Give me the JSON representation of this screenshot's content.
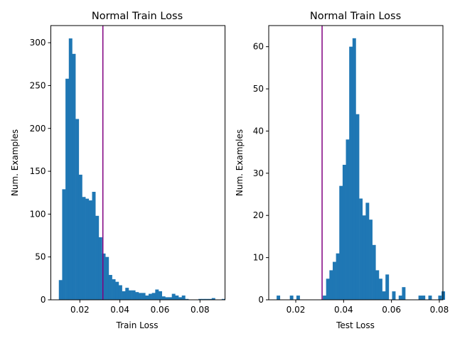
{
  "chart_data": [
    {
      "type": "histogram",
      "title": "Normal Train Loss",
      "xlabel": "Train Loss",
      "ylabel": "Num. Examples",
      "xlim": [
        0.0055,
        0.0925
      ],
      "ylim": [
        0,
        320
      ],
      "xticks": [
        0.02,
        0.04,
        0.06,
        0.08
      ],
      "xtick_labels": [
        "0.02",
        "0.04",
        "0.06",
        "0.08"
      ],
      "yticks": [
        0,
        50,
        100,
        150,
        200,
        250,
        300
      ],
      "ytick_labels": [
        "0",
        "50",
        "100",
        "150",
        "200",
        "250",
        "300"
      ],
      "bar_color": "#1f77b4",
      "vline": {
        "x": 0.0315,
        "color": "#800080"
      },
      "bin_start": 0.0095,
      "bin_width": 0.00166,
      "counts": [
        23,
        129,
        258,
        305,
        287,
        211,
        146,
        120,
        118,
        116,
        126,
        98,
        73,
        54,
        50,
        29,
        24,
        21,
        17,
        10,
        14,
        11,
        11,
        9,
        8,
        8,
        5,
        7,
        8,
        12,
        10,
        4,
        3,
        3,
        7,
        5,
        3,
        5,
        1,
        0,
        0,
        0,
        1,
        1,
        1,
        1,
        2,
        0,
        0,
        1
      ]
    },
    {
      "type": "histogram",
      "title": "Normal Train Loss",
      "xlabel": "Test Loss",
      "ylabel": "Num. Examples",
      "xlim": [
        0.0087,
        0.0815
      ],
      "ylim": [
        0,
        65
      ],
      "xticks": [
        0.02,
        0.04,
        0.06,
        0.08
      ],
      "xtick_labels": [
        "0.02",
        "0.04",
        "0.06",
        "0.08"
      ],
      "yticks": [
        0,
        10,
        20,
        30,
        40,
        50,
        60
      ],
      "ytick_labels": [
        "0",
        "10",
        "20",
        "30",
        "40",
        "50",
        "60"
      ],
      "bar_color": "#1f77b4",
      "vline": {
        "x": 0.031,
        "color": "#800080"
      },
      "bin_start": 0.012,
      "bin_width": 0.0013786,
      "counts": [
        1,
        0,
        0,
        0,
        1,
        0,
        1,
        0,
        0,
        0,
        0,
        0,
        0,
        0,
        1,
        5,
        7,
        9,
        11,
        27,
        32,
        38,
        60,
        62,
        44,
        24,
        20,
        23,
        19,
        13,
        7,
        5,
        2,
        6,
        0,
        2,
        0,
        1,
        3,
        0,
        0,
        0,
        0,
        1,
        1,
        0,
        1,
        0,
        0,
        1,
        2
      ]
    }
  ]
}
